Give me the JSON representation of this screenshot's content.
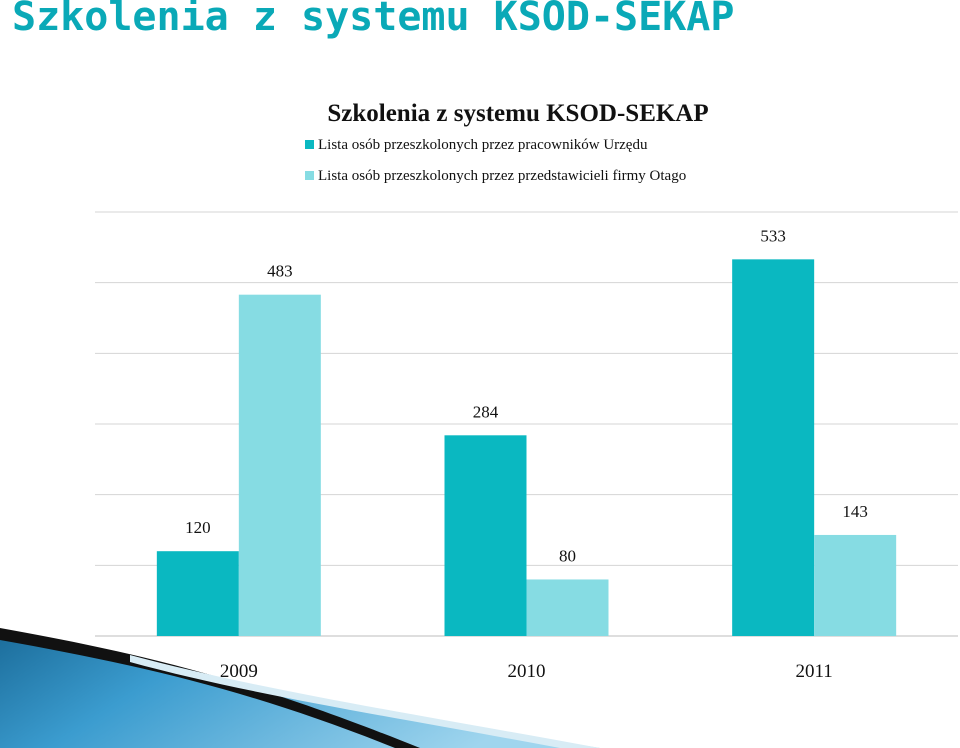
{
  "slide": {
    "title": "Szkolenia z systemu KSOD-SEKAP"
  },
  "chart_data": {
    "type": "bar",
    "title": "Szkolenia z systemu KSOD-SEKAP",
    "categories": [
      "2009",
      "2010",
      "2011"
    ],
    "series": [
      {
        "name": "Lista osób przeszkolonych przez pracowników Urzędu",
        "values": [
          120,
          284,
          533
        ],
        "color": "#0ab8c1"
      },
      {
        "name": "Lista osób przeszkolonych przez przedstawicieli firmy Otago",
        "values": [
          483,
          80,
          143
        ],
        "color": "#86dce3"
      }
    ],
    "ylim": [
      0,
      600
    ],
    "grid": true,
    "legend_position": "top"
  }
}
